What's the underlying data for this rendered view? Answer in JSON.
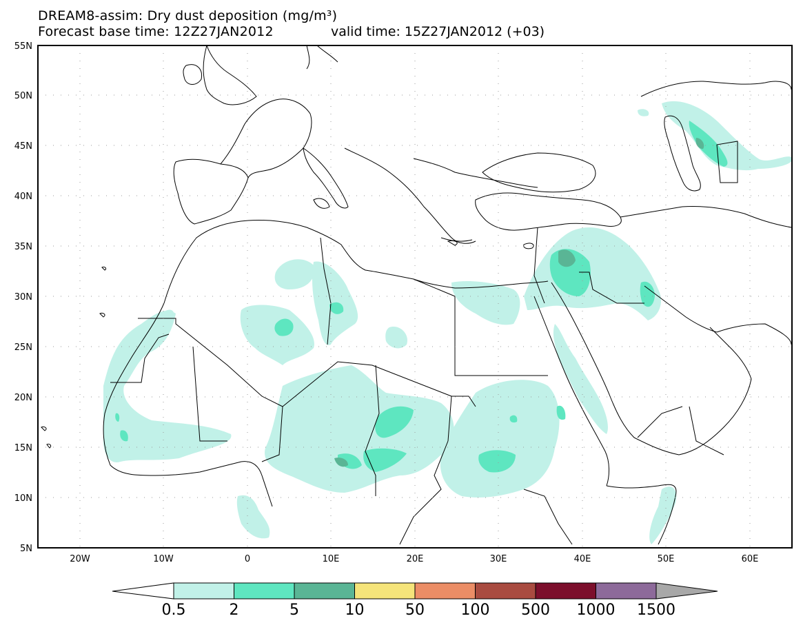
{
  "header": {
    "title": "DREAM8-assim: Dry dust deposition (mg/m³)",
    "base_time": "Forecast base time: 12Z27JAN2012",
    "valid_time": "valid time: 15Z27JAN2012 (+03)"
  },
  "map": {
    "lat_labels": [
      "55N",
      "50N",
      "45N",
      "40N",
      "35N",
      "30N",
      "25N",
      "20N",
      "15N",
      "10N",
      "5N"
    ],
    "lon_labels": [
      "20W",
      "10W",
      "0",
      "10E",
      "20E",
      "30E",
      "40E",
      "50E",
      "60E"
    ]
  },
  "colorbar": {
    "labels": [
      "0.5",
      "2",
      "5",
      "10",
      "50",
      "100",
      "500",
      "1000",
      "1500"
    ],
    "colors": [
      "#c1f1e8",
      "#5ee6c0",
      "#5ab595",
      "#f5e47a",
      "#eb8d66",
      "#a94b40",
      "#7c0f2c",
      "#8d6a9a"
    ],
    "under_color": "#ffffff",
    "over_color": "#a8a8a8"
  }
}
